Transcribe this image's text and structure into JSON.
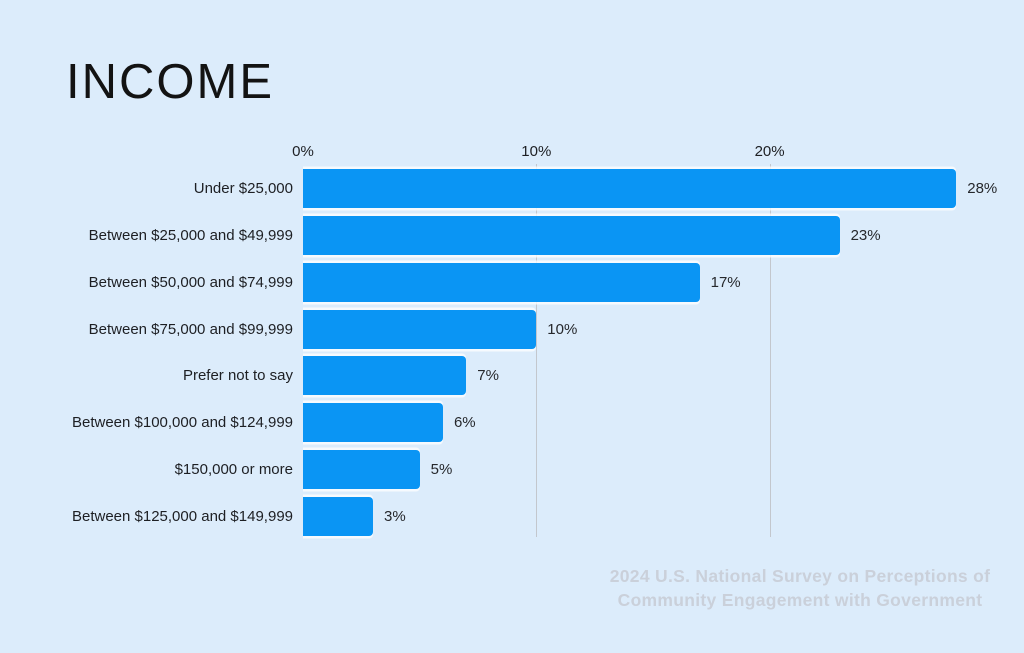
{
  "page": {
    "background_color": "#dcecfb"
  },
  "chart_data": {
    "type": "bar",
    "orientation": "horizontal",
    "title": "INCOME",
    "categories": [
      "Under $25,000",
      "Between $25,000 and $49,999",
      "Between $50,000 and $74,999",
      "Between $75,000 and $99,999",
      "Prefer not to say",
      "Between $100,000 and $124,999",
      "$150,000 or more",
      "Between $125,000 and $149,999"
    ],
    "values": [
      28,
      23,
      17,
      10,
      7,
      6,
      5,
      3
    ],
    "value_labels": [
      "28%",
      "23%",
      "17%",
      "10%",
      "7%",
      "6%",
      "5%",
      "3%"
    ],
    "x_ticks": [
      "0%",
      "10%",
      "20%"
    ],
    "x_tick_values": [
      0,
      10,
      20
    ],
    "xlim": [
      0,
      30
    ],
    "xlabel": "",
    "ylabel": "",
    "legend": "none",
    "grid": "vertical gridlines at 10% and 20%",
    "bar_color": "#0a95f4",
    "gridline_color": "#c3c7cd",
    "label_color": "#1d1f23",
    "source": "2024 U.S. National Survey on Perceptions of Community Engagement with Government",
    "source_lines": [
      "2024 U.S. National Survey on Perceptions of",
      "Community Engagement with Government"
    ]
  }
}
